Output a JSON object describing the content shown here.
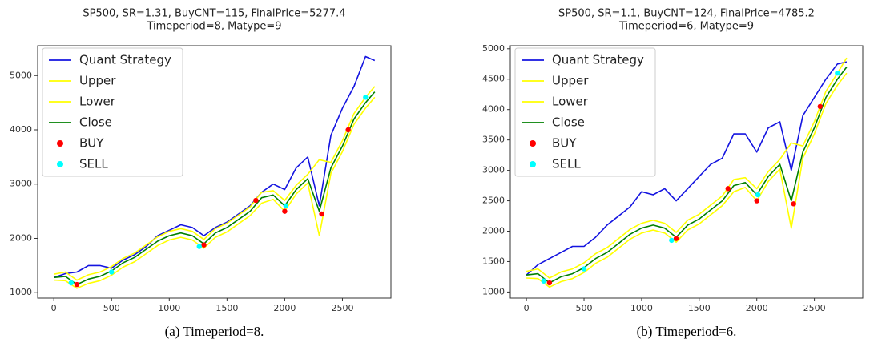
{
  "chart_data": [
    {
      "type": "line",
      "title": [
        "SP500, SR=1.31, BuyCNT=115, FinalPrice=5277.4",
        "Timeperiod=8,  Matype=9"
      ],
      "caption": "(a) Timeperiod=8.",
      "x": [
        0,
        100,
        200,
        300,
        400,
        500,
        600,
        700,
        800,
        900,
        1000,
        1100,
        1200,
        1300,
        1400,
        1500,
        1600,
        1700,
        1800,
        1900,
        2000,
        2100,
        2200,
        2300,
        2400,
        2500,
        2600,
        2700,
        2780
      ],
      "series": [
        {
          "name": "Quant Strategy",
          "color": "#1414e0",
          "values": [
            1280,
            1350,
            1380,
            1500,
            1500,
            1450,
            1600,
            1700,
            1850,
            2050,
            2150,
            2250,
            2200,
            2050,
            2200,
            2300,
            2450,
            2600,
            2850,
            3000,
            2900,
            3300,
            3500,
            2600,
            3900,
            4400,
            4800,
            5350,
            5277.4
          ]
        },
        {
          "name": "Upper",
          "color": "#ffff00",
          "values": [
            1340,
            1380,
            1230,
            1330,
            1380,
            1480,
            1630,
            1730,
            1880,
            2030,
            2130,
            2180,
            2130,
            1980,
            2180,
            2280,
            2430,
            2580,
            2850,
            2880,
            2700,
            2980,
            3180,
            3450,
            3400,
            3800,
            4300,
            4600,
            4800
          ]
        },
        {
          "name": "Lower",
          "color": "#ffff00",
          "values": [
            1230,
            1220,
            1080,
            1170,
            1220,
            1320,
            1470,
            1570,
            1720,
            1870,
            1970,
            2020,
            1970,
            1820,
            2020,
            2120,
            2270,
            2420,
            2650,
            2720,
            2500,
            2820,
            3020,
            2050,
            3200,
            3600,
            4100,
            4400,
            4600
          ]
        },
        {
          "name": "Close",
          "color": "#008000",
          "values": [
            1280,
            1300,
            1150,
            1250,
            1300,
            1400,
            1550,
            1650,
            1800,
            1950,
            2050,
            2100,
            2050,
            1900,
            2100,
            2200,
            2350,
            2500,
            2750,
            2800,
            2600,
            2900,
            3100,
            2500,
            3300,
            3700,
            4200,
            4500,
            4700
          ]
        },
        {
          "name": "BUY",
          "color": "#ff0000",
          "kind": "scatter",
          "x": [
            200,
            1300,
            1750,
            2000,
            2320,
            2550
          ],
          "values": [
            1150,
            1880,
            2700,
            2500,
            2450,
            4000
          ]
        },
        {
          "name": "SELL",
          "color": "#00ffff",
          "kind": "scatter",
          "x": [
            150,
            500,
            1260,
            2010,
            2700
          ],
          "values": [
            1180,
            1380,
            1850,
            2600,
            4600
          ]
        }
      ],
      "xlim": [
        -140,
        2920
      ],
      "xticks": [
        0,
        500,
        1000,
        1500,
        2000,
        2500
      ],
      "ylim": [
        900,
        5550
      ],
      "yticks": [
        1000,
        2000,
        3000,
        4000,
        5000
      ]
    },
    {
      "type": "line",
      "title": [
        "SP500, SR=1.1, BuyCNT=124, FinalPrice=4785.2",
        "Timeperiod=6,  Matype=9"
      ],
      "caption": "(b) Timeperiod=6.",
      "x": [
        0,
        100,
        200,
        300,
        400,
        500,
        600,
        700,
        800,
        900,
        1000,
        1100,
        1200,
        1300,
        1400,
        1500,
        1600,
        1700,
        1800,
        1900,
        2000,
        2100,
        2200,
        2300,
        2400,
        2500,
        2600,
        2700,
        2780
      ],
      "series": [
        {
          "name": "Quant Strategy",
          "color": "#1414e0",
          "values": [
            1280,
            1450,
            1550,
            1650,
            1750,
            1750,
            1900,
            2100,
            2250,
            2400,
            2650,
            2600,
            2700,
            2500,
            2700,
            2900,
            3100,
            3200,
            3600,
            3600,
            3300,
            3700,
            3800,
            3000,
            3900,
            4200,
            4500,
            4750,
            4785.2
          ]
        },
        {
          "name": "Upper",
          "color": "#ffff00",
          "values": [
            1340,
            1380,
            1230,
            1330,
            1380,
            1480,
            1630,
            1730,
            1880,
            2030,
            2130,
            2180,
            2130,
            1980,
            2180,
            2280,
            2430,
            2580,
            2850,
            2880,
            2700,
            2980,
            3180,
            3450,
            3400,
            3800,
            4300,
            4600,
            4850
          ]
        },
        {
          "name": "Lower",
          "color": "#ffff00",
          "values": [
            1230,
            1220,
            1080,
            1170,
            1220,
            1320,
            1470,
            1570,
            1720,
            1870,
            1970,
            2020,
            1970,
            1820,
            2020,
            2120,
            2270,
            2420,
            2650,
            2720,
            2500,
            2820,
            3020,
            2050,
            3200,
            3600,
            4100,
            4400,
            4600
          ]
        },
        {
          "name": "Close",
          "color": "#008000",
          "values": [
            1280,
            1300,
            1150,
            1250,
            1300,
            1400,
            1550,
            1650,
            1800,
            1950,
            2050,
            2100,
            2050,
            1900,
            2100,
            2200,
            2350,
            2500,
            2750,
            2800,
            2600,
            2900,
            3100,
            2500,
            3300,
            3700,
            4200,
            4500,
            4700
          ]
        },
        {
          "name": "BUY",
          "color": "#ff0000",
          "kind": "scatter",
          "x": [
            200,
            1300,
            1750,
            2000,
            2320,
            2550
          ],
          "values": [
            1150,
            1880,
            2700,
            2500,
            2450,
            4050
          ]
        },
        {
          "name": "SELL",
          "color": "#00ffff",
          "kind": "scatter",
          "x": [
            150,
            500,
            1260,
            2010,
            2700
          ],
          "values": [
            1180,
            1380,
            1850,
            2600,
            4600
          ]
        }
      ],
      "xlim": [
        -140,
        2920
      ],
      "xticks": [
        0,
        500,
        1000,
        1500,
        2000,
        2500
      ],
      "ylim": [
        900,
        5050
      ],
      "yticks": [
        1000,
        1500,
        2000,
        2500,
        3000,
        3500,
        4000,
        4500,
        5000
      ]
    }
  ]
}
